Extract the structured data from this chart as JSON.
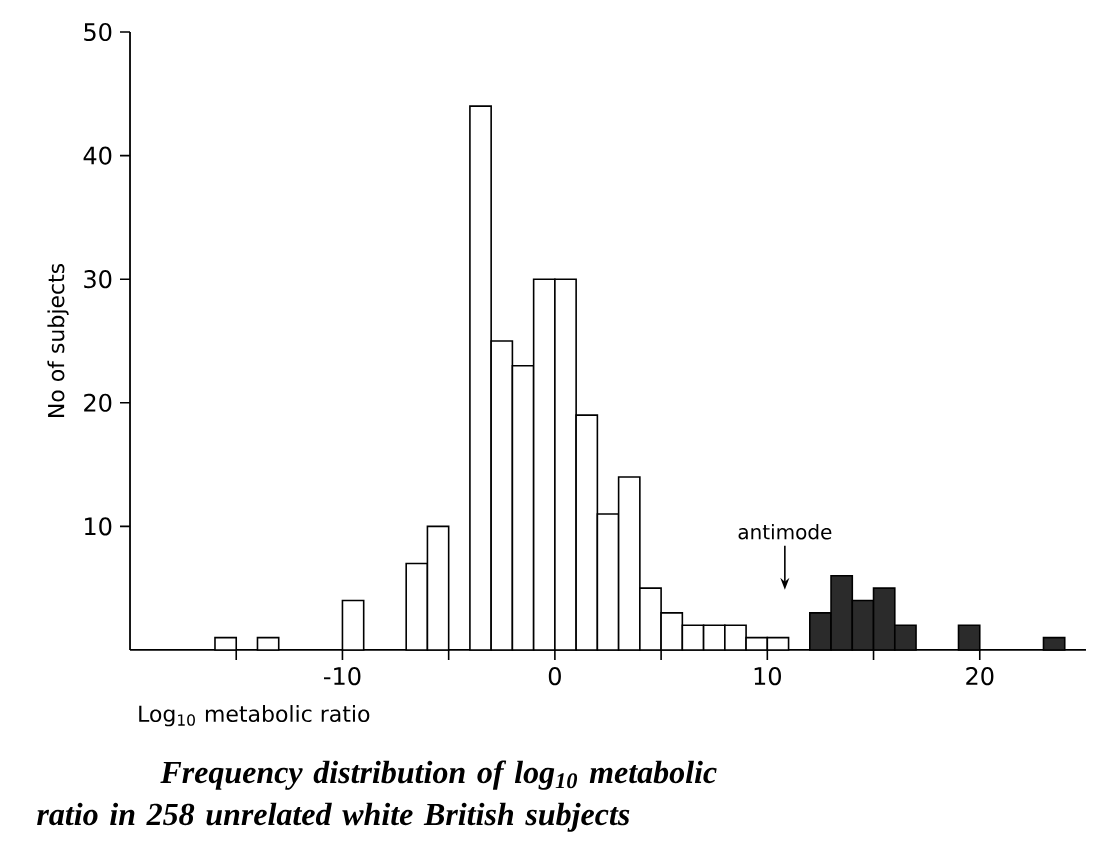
{
  "chart_data": {
    "type": "histogram",
    "title": "Frequency distribution of log$_{10}$ metabolic ratio in 258 unrelated white British subjects",
    "xlabel": "Log$_{10}$ metabolic ratio",
    "ylabel": "No of subjects",
    "bins": [
      -16,
      -15,
      -14,
      -13,
      -12,
      -11,
      -10,
      -9,
      -8,
      -7,
      -6,
      -5,
      -4,
      -3,
      -2,
      -1,
      0,
      1,
      2,
      3,
      4,
      5,
      6,
      7,
      8,
      9,
      10,
      11,
      12,
      13,
      14,
      15,
      16,
      17,
      18,
      19,
      20,
      21,
      22,
      23,
      24
    ],
    "values": [
      1,
      0,
      1,
      0,
      0,
      0,
      4,
      0,
      0,
      7,
      10,
      0,
      44,
      25,
      23,
      30,
      30,
      19,
      11,
      14,
      5,
      3,
      2,
      2,
      2,
      1,
      1,
      0,
      3,
      6,
      4,
      5,
      2,
      0,
      0,
      2,
      0,
      0,
      0,
      1
    ],
    "colors": [
      "#ffffff",
      "#ffffff",
      "#ffffff",
      "#ffffff",
      "#ffffff",
      "#ffffff",
      "#ffffff",
      "#ffffff",
      "#ffffff",
      "#ffffff",
      "#ffffff",
      "#ffffff",
      "#ffffff",
      "#ffffff",
      "#ffffff",
      "#ffffff",
      "#ffffff",
      "#ffffff",
      "#ffffff",
      "#ffffff",
      "#ffffff",
      "#ffffff",
      "#ffffff",
      "#ffffff",
      "#ffffff",
      "#ffffff",
      "#ffffff",
      "#2b2b2b",
      "#2b2b2b",
      "#2b2b2b",
      "#2b2b2b",
      "#2b2b2b",
      "#2b2b2b",
      "#2b2b2b",
      "#2b2b2b",
      "#2b2b2b",
      "#2b2b2b",
      "#2b2b2b",
      "#2b2b2b",
      "#2b2b2b"
    ],
    "xlim": [
      -20,
      25
    ],
    "ylim": [
      0,
      50
    ],
    "xticks": [
      {
        "value": -15,
        "label": null
      },
      -10,
      {
        "value": -5,
        "label": null
      },
      0,
      {
        "value": 5,
        "label": null
      },
      10,
      {
        "value": 15,
        "label": null
      },
      20
    ],
    "yticks": [
      10,
      20,
      30,
      40,
      50
    ],
    "annotations": [
      "antimode"
    ],
    "grid": false
  }
}
